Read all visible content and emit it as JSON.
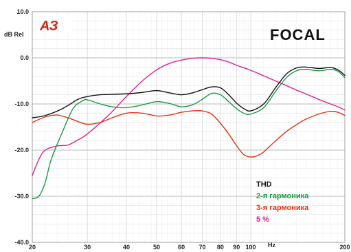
{
  "logo_text": "АЗ",
  "brand": "FOCAL",
  "chart_data": {
    "type": "line",
    "ylabel": "dB Rel",
    "xlabel": "Hz",
    "x_scale": "log",
    "xlim": [
      20,
      200
    ],
    "ylim": [
      -40,
      10
    ],
    "grid": true,
    "legend_position": "bottom-right",
    "x_ticks": [
      20,
      30,
      40,
      50,
      60,
      70,
      80,
      90,
      100,
      200
    ],
    "y_ticks": [
      {
        "value": 10,
        "label": "10.0"
      },
      {
        "value": 0,
        "label": "0.0"
      },
      {
        "value": -10,
        "label": "-10.0"
      },
      {
        "value": -20,
        "label": "-20.0"
      },
      {
        "value": -30,
        "label": "-30.0"
      },
      {
        "value": -40,
        "label": "-40.0"
      }
    ],
    "series": [
      {
        "name": "THD",
        "color": "#111111",
        "points": [
          [
            20,
            -13
          ],
          [
            22,
            -12.5
          ],
          [
            25,
            -11
          ],
          [
            28,
            -9
          ],
          [
            30,
            -8.4
          ],
          [
            33,
            -8
          ],
          [
            36,
            -7.9
          ],
          [
            40,
            -7.8
          ],
          [
            45,
            -7.5
          ],
          [
            50,
            -7.1
          ],
          [
            55,
            -7.6
          ],
          [
            60,
            -8
          ],
          [
            65,
            -7.6
          ],
          [
            70,
            -6.9
          ],
          [
            75,
            -6.3
          ],
          [
            80,
            -6.5
          ],
          [
            85,
            -8
          ],
          [
            90,
            -9.8
          ],
          [
            95,
            -11
          ],
          [
            100,
            -11.5
          ],
          [
            110,
            -10
          ],
          [
            120,
            -6.5
          ],
          [
            130,
            -3.5
          ],
          [
            140,
            -2.2
          ],
          [
            150,
            -2
          ],
          [
            165,
            -2.3
          ],
          [
            180,
            -2.1
          ],
          [
            190,
            -2.6
          ],
          [
            200,
            -3.8
          ]
        ]
      },
      {
        "name": "2-я гармоника",
        "color": "#1a9a45",
        "points": [
          [
            20,
            -30.5
          ],
          [
            21,
            -30
          ],
          [
            22,
            -27
          ],
          [
            23,
            -22
          ],
          [
            25,
            -16
          ],
          [
            27,
            -11
          ],
          [
            29,
            -9.3
          ],
          [
            30,
            -9.1
          ],
          [
            33,
            -10
          ],
          [
            36,
            -10.6
          ],
          [
            40,
            -10.8
          ],
          [
            45,
            -10.2
          ],
          [
            50,
            -9.5
          ],
          [
            55,
            -9.9
          ],
          [
            60,
            -10.6
          ],
          [
            65,
            -10.2
          ],
          [
            70,
            -9
          ],
          [
            75,
            -7.7
          ],
          [
            80,
            -8
          ],
          [
            85,
            -9.5
          ],
          [
            90,
            -11
          ],
          [
            95,
            -12
          ],
          [
            100,
            -12.2
          ],
          [
            110,
            -10.8
          ],
          [
            120,
            -7.3
          ],
          [
            130,
            -4.3
          ],
          [
            140,
            -2.8
          ],
          [
            150,
            -2.5
          ],
          [
            165,
            -2.8
          ],
          [
            180,
            -2.5
          ],
          [
            190,
            -2.9
          ],
          [
            200,
            -4.3
          ]
        ]
      },
      {
        "name": "3-я гармоника",
        "color": "#e53312",
        "points": [
          [
            20,
            -14
          ],
          [
            22,
            -12.8
          ],
          [
            24,
            -12.4
          ],
          [
            26,
            -13
          ],
          [
            28,
            -13.8
          ],
          [
            30,
            -14.4
          ],
          [
            33,
            -14
          ],
          [
            36,
            -13
          ],
          [
            40,
            -12
          ],
          [
            45,
            -12
          ],
          [
            50,
            -12.6
          ],
          [
            55,
            -12.4
          ],
          [
            60,
            -11.8
          ],
          [
            65,
            -11.5
          ],
          [
            70,
            -11.5
          ],
          [
            75,
            -12.2
          ],
          [
            80,
            -14.2
          ],
          [
            85,
            -16.5
          ],
          [
            90,
            -19
          ],
          [
            95,
            -21
          ],
          [
            100,
            -21.5
          ],
          [
            105,
            -21.2
          ],
          [
            110,
            -20.4
          ],
          [
            120,
            -18
          ],
          [
            130,
            -16
          ],
          [
            140,
            -14.5
          ],
          [
            150,
            -13.3
          ],
          [
            165,
            -12.2
          ],
          [
            180,
            -11.6
          ],
          [
            190,
            -11.8
          ],
          [
            200,
            -12.5
          ]
        ]
      },
      {
        "name": "5 %",
        "color": "#e0208f",
        "points": [
          [
            20,
            -25.5
          ],
          [
            21,
            -22
          ],
          [
            22,
            -20
          ],
          [
            24,
            -19.1
          ],
          [
            26,
            -18.9
          ],
          [
            28,
            -17.8
          ],
          [
            30,
            -16.5
          ],
          [
            35,
            -12.5
          ],
          [
            40,
            -8.4
          ],
          [
            45,
            -5
          ],
          [
            50,
            -2.6
          ],
          [
            55,
            -1.2
          ],
          [
            60,
            -0.5
          ],
          [
            65,
            -0.1
          ],
          [
            70,
            0
          ],
          [
            75,
            -0.1
          ],
          [
            80,
            -0.4
          ],
          [
            85,
            -0.9
          ],
          [
            90,
            -1.6
          ],
          [
            100,
            -2.7
          ],
          [
            110,
            -3.9
          ],
          [
            120,
            -5
          ],
          [
            130,
            -6
          ],
          [
            140,
            -7
          ],
          [
            150,
            -7.8
          ],
          [
            165,
            -9
          ],
          [
            180,
            -10
          ],
          [
            190,
            -10.6
          ],
          [
            200,
            -11.3
          ]
        ]
      }
    ]
  }
}
